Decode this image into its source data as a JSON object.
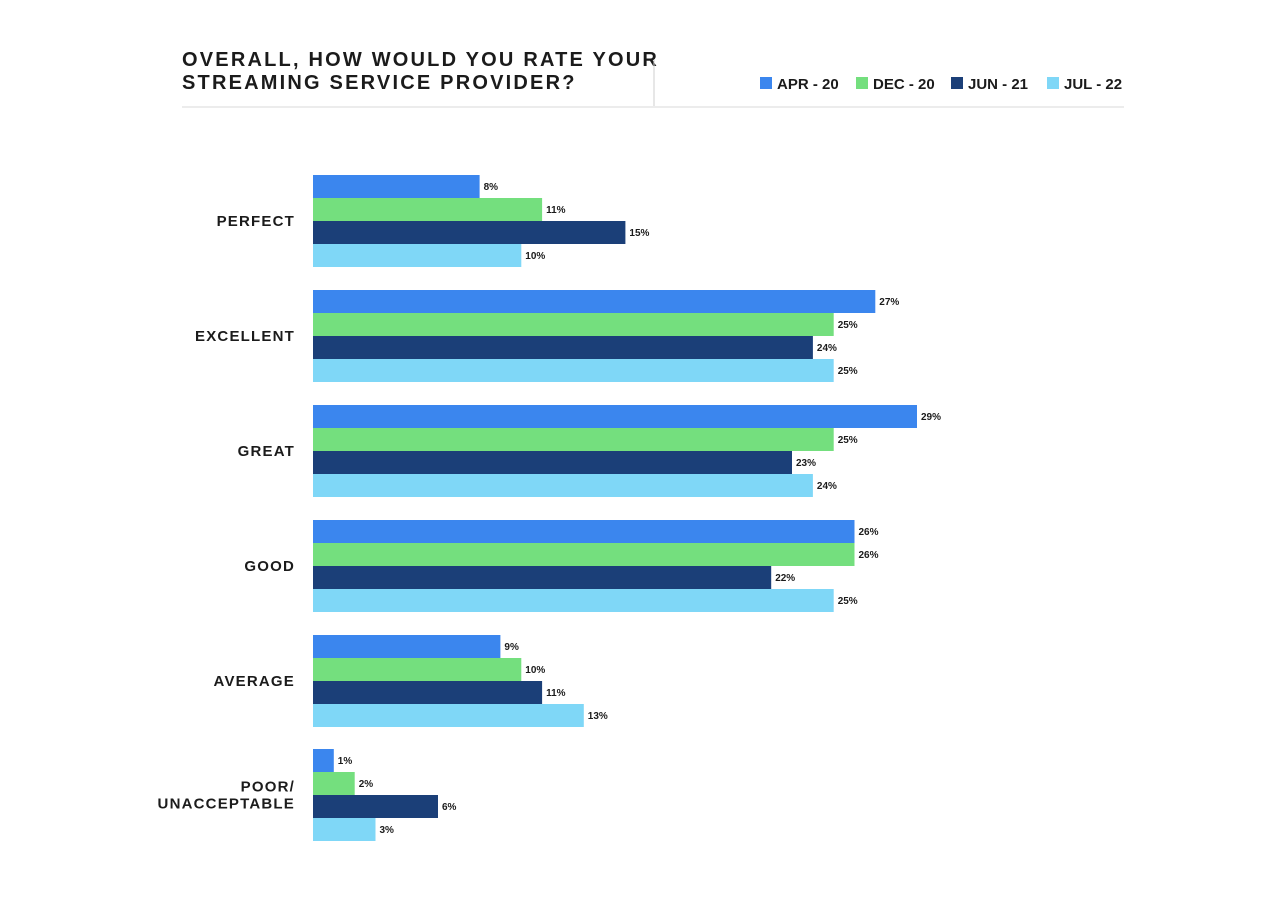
{
  "chart_data": {
    "type": "bar",
    "orientation": "horizontal",
    "title_lines": [
      "OVERALL, HOW WOULD YOU RATE YOUR",
      "STREAMING SERVICE PROVIDER?"
    ],
    "categories": [
      [
        "PERFECT"
      ],
      [
        "EXCELLENT"
      ],
      [
        "GREAT"
      ],
      [
        "GOOD"
      ],
      [
        "AVERAGE"
      ],
      [
        "POOR/",
        "UNACCEPTABLE"
      ]
    ],
    "series": [
      {
        "name": "APR - 20",
        "color": "#3b86ee",
        "values": [
          8,
          27,
          29,
          26,
          9,
          1
        ]
      },
      {
        "name": "DEC - 20",
        "color": "#74df7e",
        "values": [
          11,
          25,
          25,
          26,
          10,
          2
        ]
      },
      {
        "name": "JUN - 21",
        "color": "#1b3f78",
        "values": [
          15,
          24,
          23,
          22,
          11,
          6
        ]
      },
      {
        "name": "JUL - 22",
        "color": "#7fd7f7",
        "values": [
          10,
          25,
          24,
          25,
          13,
          3
        ]
      }
    ],
    "value_suffix": "%",
    "legend_position": "top-right",
    "grid": false
  }
}
